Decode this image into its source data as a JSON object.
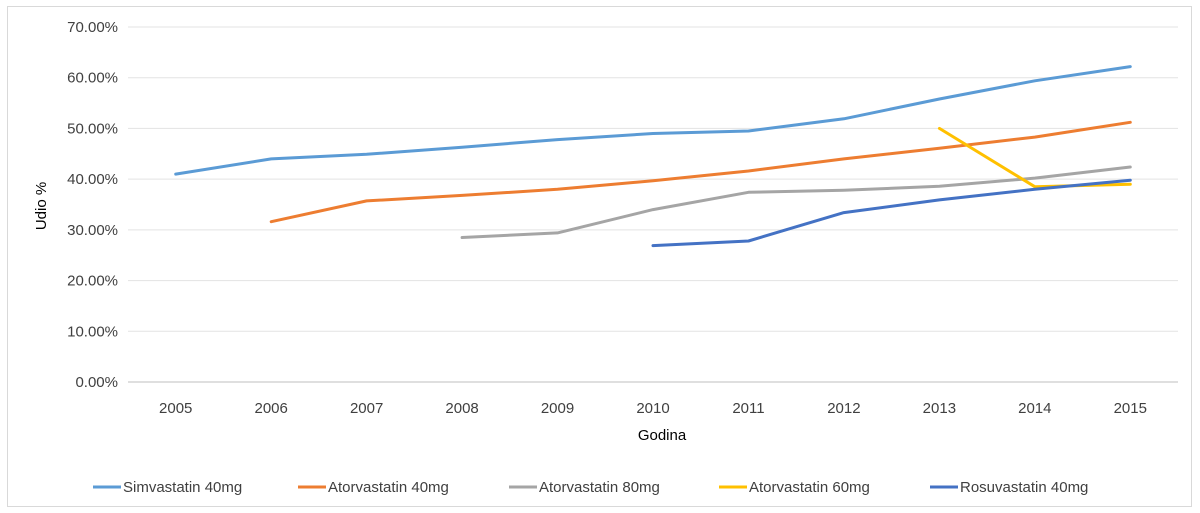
{
  "chart_data": {
    "type": "line",
    "title": "",
    "xlabel": "Godina",
    "ylabel": "Udio %",
    "categories": [
      "2005",
      "2006",
      "2007",
      "2008",
      "2009",
      "2010",
      "2011",
      "2012",
      "2013",
      "2014",
      "2015"
    ],
    "ylim": [
      0,
      70
    ],
    "yticks": [
      "0.00%",
      "10.00%",
      "20.00%",
      "30.00%",
      "40.00%",
      "50.00%",
      "60.00%",
      "70.00%"
    ],
    "grid": true,
    "legend_position": "bottom",
    "series": [
      {
        "name": "Simvastatin 40mg",
        "color": "#5B9BD5",
        "values": [
          41.0,
          44.0,
          44.9,
          46.3,
          47.8,
          49.0,
          49.5,
          51.9,
          55.8,
          59.4,
          62.2
        ]
      },
      {
        "name": "Atorvastatin 40mg",
        "color": "#ED7D31",
        "values": [
          null,
          31.6,
          35.7,
          36.8,
          38.0,
          39.7,
          41.6,
          44.0,
          46.1,
          48.3,
          51.2
        ]
      },
      {
        "name": "Atorvastatin 80mg",
        "color": "#A5A5A5",
        "values": [
          null,
          null,
          null,
          28.5,
          29.4,
          34.0,
          37.4,
          37.8,
          38.6,
          40.2,
          42.4
        ]
      },
      {
        "name": "Atorvastatin 60mg",
        "color": "#FFC000",
        "values": [
          null,
          null,
          null,
          null,
          null,
          null,
          null,
          null,
          50.0,
          38.5,
          39.0
        ]
      },
      {
        "name": "Rosuvastatin 40mg",
        "color": "#4472C4",
        "values": [
          null,
          null,
          null,
          null,
          null,
          26.9,
          27.8,
          33.4,
          35.9,
          38.0,
          39.8
        ]
      }
    ]
  }
}
